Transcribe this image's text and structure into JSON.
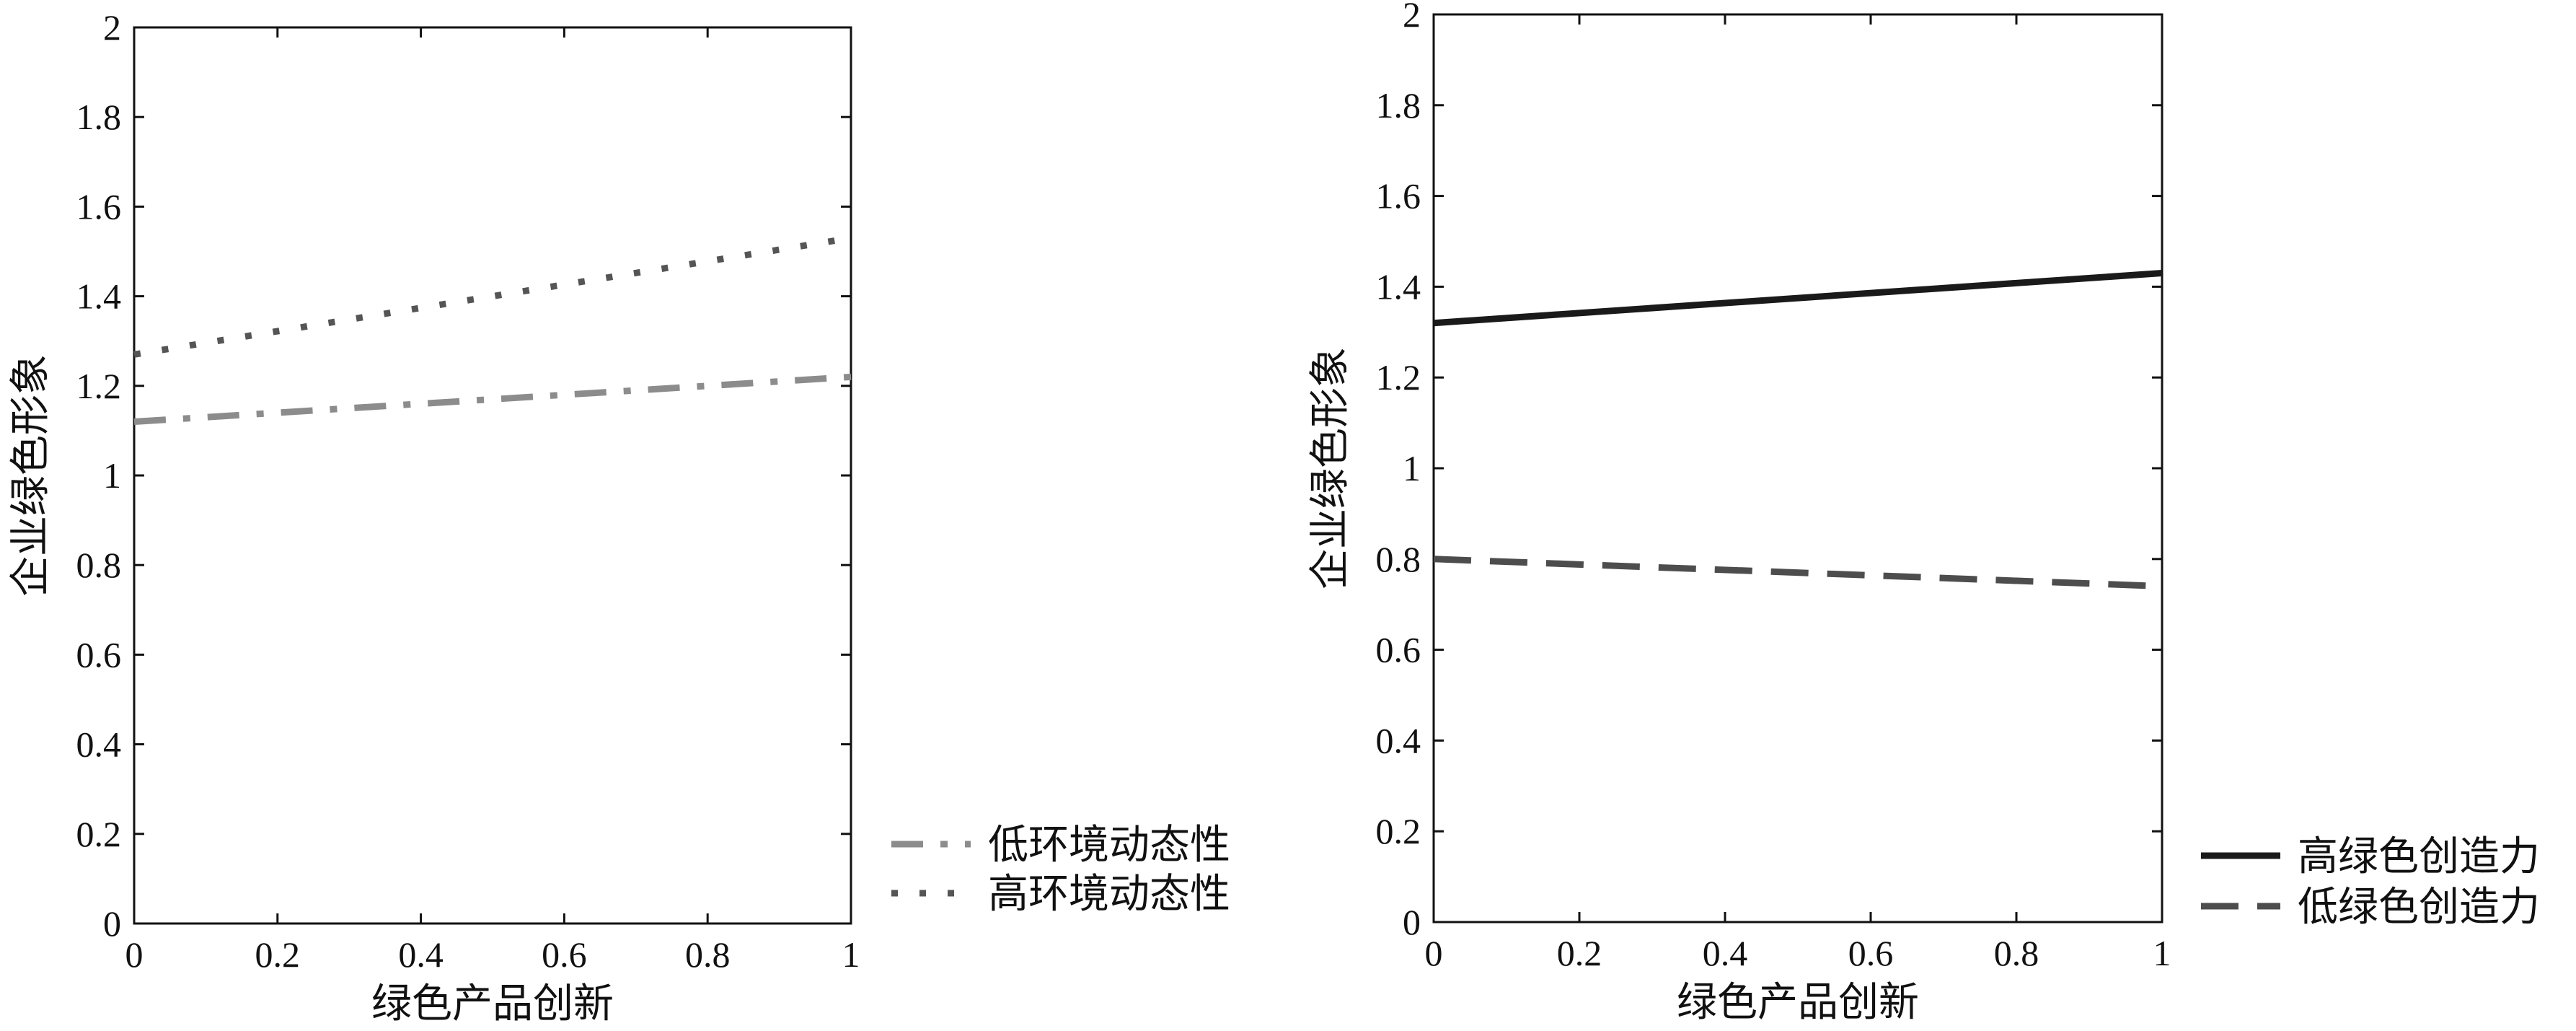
{
  "chart_data": [
    {
      "type": "line",
      "title": "",
      "xlabel": "绿色产品创新",
      "ylabel": "企业绿色形象",
      "xlim": [
        0,
        1
      ],
      "ylim": [
        0,
        2
      ],
      "xticks": [
        "0",
        "0.2",
        "0.4",
        "0.6",
        "0.8",
        "1"
      ],
      "yticks": [
        "0",
        "0.2",
        "0.4",
        "0.6",
        "0.8",
        "1",
        "1.2",
        "1.4",
        "1.6",
        "1.8",
        "2"
      ],
      "grid": false,
      "legend_position": "outside-right-bottom",
      "series": [
        {
          "name": "低环境动态性",
          "x": [
            0,
            1
          ],
          "y": [
            1.12,
            1.22
          ],
          "line_style": "dash-dot",
          "color": "#8c8c8c"
        },
        {
          "name": "高环境动态性",
          "x": [
            0,
            1
          ],
          "y": [
            1.27,
            1.53
          ],
          "line_style": "dotted",
          "color": "#555555"
        }
      ]
    },
    {
      "type": "line",
      "title": "",
      "xlabel": "绿色产品创新",
      "ylabel": "企业绿色形象",
      "xlim": [
        0,
        1
      ],
      "ylim": [
        0,
        2
      ],
      "xticks": [
        "0",
        "0.2",
        "0.4",
        "0.6",
        "0.8",
        "1"
      ],
      "yticks": [
        "0",
        "0.2",
        "0.4",
        "0.6",
        "0.8",
        "1",
        "1.2",
        "1.4",
        "1.6",
        "1.8",
        "2"
      ],
      "grid": false,
      "legend_position": "outside-right-bottom",
      "series": [
        {
          "name": "高绿色创造力",
          "x": [
            0,
            1
          ],
          "y": [
            1.32,
            1.43
          ],
          "line_style": "solid",
          "color": "#1a1a1a"
        },
        {
          "name": "低绿色创造力",
          "x": [
            0,
            1
          ],
          "y": [
            0.8,
            0.74
          ],
          "line_style": "dashed",
          "color": "#4d4d4d"
        }
      ]
    }
  ]
}
